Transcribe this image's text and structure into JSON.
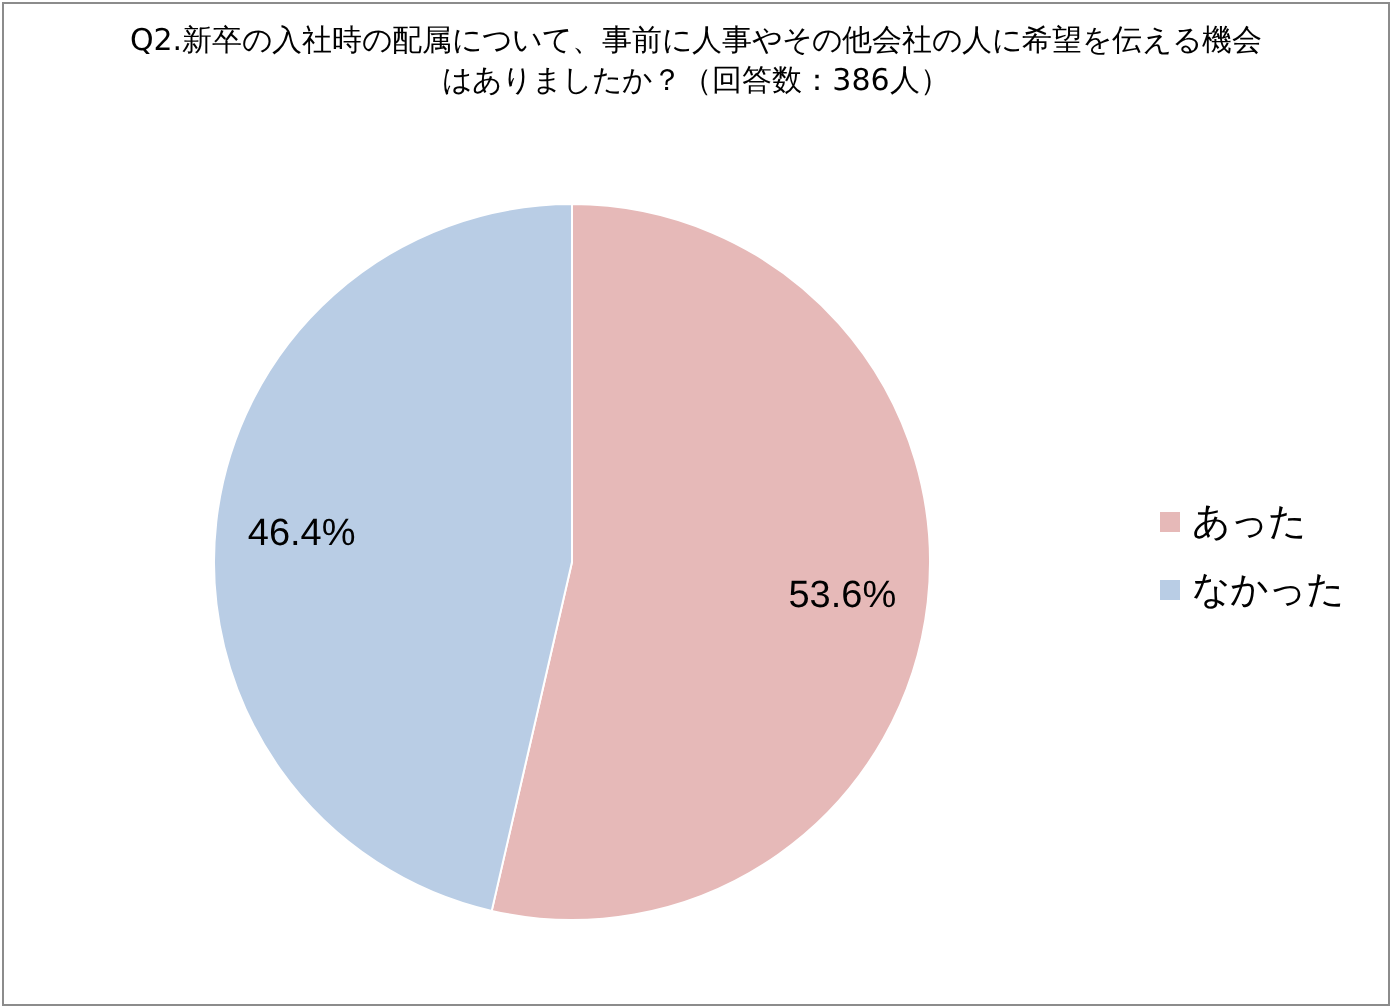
{
  "chart_data": {
    "type": "pie",
    "title": "Q2.新卒の入社時の配属について、事前に人事やその他会社の人に希望を伝える機会はありましたか？（回答数：386人）",
    "categories": [
      "あった",
      "なかった"
    ],
    "values": [
      53.6,
      46.4
    ],
    "colors": [
      "#e6b9b8",
      "#b9cde5"
    ],
    "value_labels": [
      "53.6%",
      "46.4%"
    ],
    "legend": "right"
  }
}
